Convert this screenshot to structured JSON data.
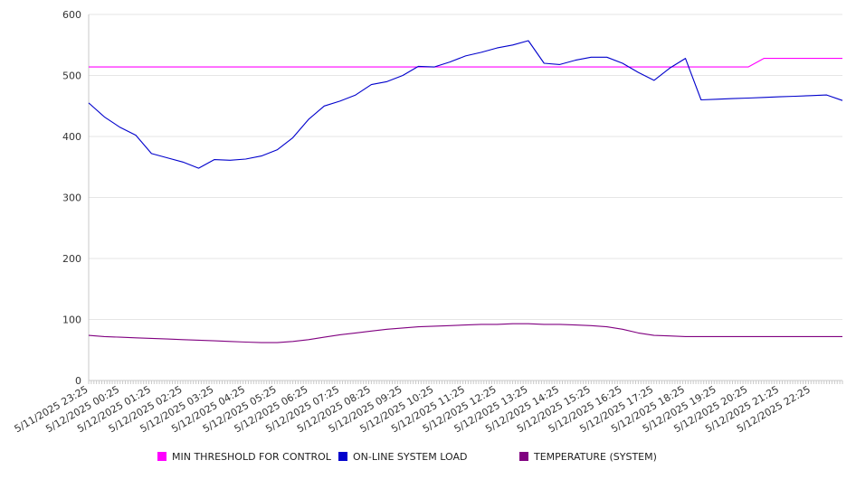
{
  "chart_data": {
    "type": "line",
    "ylim": [
      0,
      600
    ],
    "yticks": [
      0,
      100,
      200,
      300,
      400,
      500,
      600
    ],
    "x_tick_labels": [
      "5/11/2025 23:25",
      "5/12/2025 00:25",
      "5/12/2025 01:25",
      "5/12/2025 02:25",
      "5/12/2025 03:25",
      "5/12/2025 04:25",
      "5/12/2025 05:25",
      "5/12/2025 06:25",
      "5/12/2025 07:25",
      "5/12/2025 08:25",
      "5/12/2025 09:25",
      "5/12/2025 10:25",
      "5/12/2025 11:25",
      "5/12/2025 12:25",
      "5/12/2025 13:25",
      "5/12/2025 14:25",
      "5/12/2025 15:25",
      "5/12/2025 16:25",
      "5/12/2025 17:25",
      "5/12/2025 18:25",
      "5/12/2025 19:25",
      "5/12/2025 20:25",
      "5/12/2025 21:25",
      "5/12/2025 22:25"
    ],
    "x_hours": [
      0,
      0.5,
      1,
      1.5,
      2,
      2.5,
      3,
      3.5,
      4,
      4.5,
      5,
      5.5,
      6,
      6.5,
      7,
      7.5,
      8,
      8.5,
      9,
      9.5,
      10,
      10.5,
      11,
      11.5,
      12,
      12.5,
      13,
      13.5,
      14,
      14.5,
      15,
      15.5,
      16,
      16.5,
      17,
      17.5,
      18,
      18.5,
      19,
      19.5,
      20,
      20.5,
      21,
      21.5,
      22,
      22.5,
      23,
      23.5,
      24
    ],
    "grid": true,
    "legend_position": "bottom",
    "series": [
      {
        "name": "MIN THRESHOLD FOR CONTROL",
        "color": "#ff00ff",
        "values": [
          514,
          514,
          514,
          514,
          514,
          514,
          514,
          514,
          514,
          514,
          514,
          514,
          514,
          514,
          514,
          514,
          514,
          514,
          514,
          514,
          514,
          514,
          514,
          514,
          514,
          514,
          514,
          514,
          514,
          514,
          514,
          514,
          514,
          514,
          514,
          514,
          514,
          514,
          514,
          514,
          514,
          514,
          514,
          528,
          528,
          528,
          528,
          528,
          528
        ]
      },
      {
        "name": "ON-LINE SYSTEM LOAD",
        "color": "#0000cc",
        "values": [
          455,
          432,
          415,
          402,
          372,
          365,
          358,
          348,
          362,
          361,
          363,
          368,
          378,
          398,
          428,
          450,
          458,
          468,
          485,
          490,
          500,
          515,
          514,
          522,
          532,
          538,
          545,
          550,
          557,
          520,
          518,
          525,
          530,
          530,
          520,
          505,
          492,
          512,
          528,
          460,
          461,
          462,
          463,
          464,
          465,
          466,
          467,
          468,
          459
        ]
      },
      {
        "name": "TEMPERATURE (SYSTEM)",
        "color": "#800080",
        "values": [
          74,
          72,
          71,
          70,
          69,
          68,
          67,
          66,
          65,
          64,
          63,
          62,
          62,
          64,
          67,
          71,
          75,
          78,
          81,
          84,
          86,
          88,
          89,
          90,
          91,
          92,
          92,
          93,
          93,
          92,
          92,
          91,
          90,
          88,
          84,
          78,
          74,
          73,
          72,
          72,
          72,
          72,
          72,
          72,
          72,
          72,
          72,
          72,
          72
        ]
      }
    ]
  }
}
